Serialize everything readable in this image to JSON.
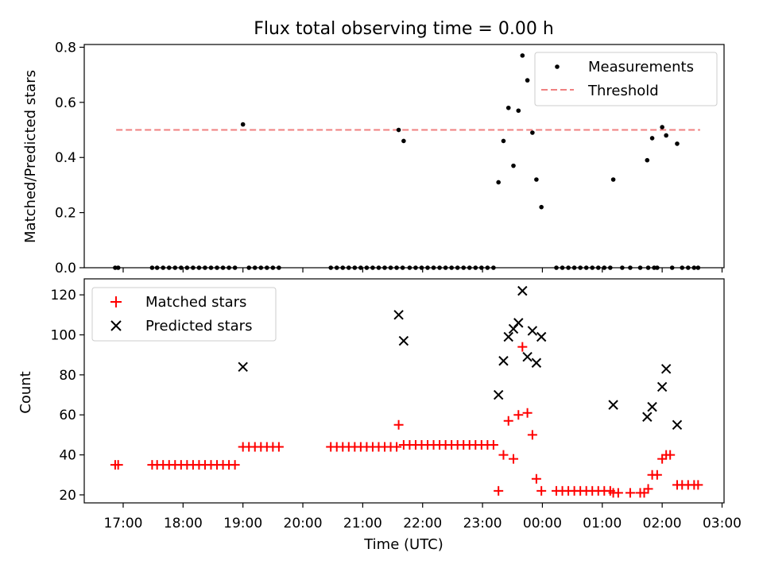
{
  "chart_data": [
    {
      "type": "scatter",
      "title": "Flux total observing time = 0.00 h",
      "xlabel": "",
      "ylabel": "Matched/Predicted stars",
      "xlim": [
        "16:21",
        "03:02"
      ],
      "ylim": [
        0,
        0.81
      ],
      "yticks": [
        "0.0",
        "0.2",
        "0.4",
        "0.6",
        "0.8"
      ],
      "legend": {
        "placement": "upper-right",
        "entries": [
          {
            "label": "Measurements",
            "marker": "dot",
            "color": "#000000"
          },
          {
            "label": "Threshold",
            "marker": "dashed-line",
            "color": "#f08080"
          }
        ]
      },
      "threshold": {
        "value": 0.5,
        "x_range": [
          "16:53",
          "02:38"
        ]
      },
      "series": [
        {
          "name": "Measurements",
          "points": [
            [
              "16:52",
              0
            ],
            [
              "16:55",
              0
            ],
            [
              "17:29",
              0
            ],
            [
              "17:34",
              0
            ],
            [
              "17:40",
              0
            ],
            [
              "17:46",
              0
            ],
            [
              "17:52",
              0
            ],
            [
              "17:58",
              0
            ],
            [
              "18:04",
              0
            ],
            [
              "18:10",
              0
            ],
            [
              "18:16",
              0
            ],
            [
              "18:22",
              0
            ],
            [
              "18:28",
              0
            ],
            [
              "18:34",
              0
            ],
            [
              "18:40",
              0
            ],
            [
              "18:46",
              0
            ],
            [
              "18:52",
              0
            ],
            [
              "19:00",
              0.52
            ],
            [
              "19:06",
              0
            ],
            [
              "19:12",
              0
            ],
            [
              "19:18",
              0
            ],
            [
              "19:24",
              0
            ],
            [
              "19:30",
              0
            ],
            [
              "19:36",
              0
            ],
            [
              "20:28",
              0
            ],
            [
              "20:34",
              0
            ],
            [
              "20:40",
              0
            ],
            [
              "20:46",
              0
            ],
            [
              "20:52",
              0
            ],
            [
              "20:58",
              0
            ],
            [
              "21:04",
              0
            ],
            [
              "21:10",
              0
            ],
            [
              "21:16",
              0
            ],
            [
              "21:22",
              0
            ],
            [
              "21:28",
              0
            ],
            [
              "21:34",
              0
            ],
            [
              "21:40",
              0
            ],
            [
              "21:36",
              0.5
            ],
            [
              "21:41",
              0.46
            ],
            [
              "21:47",
              0
            ],
            [
              "21:53",
              0
            ],
            [
              "21:59",
              0
            ],
            [
              "22:05",
              0
            ],
            [
              "22:11",
              0
            ],
            [
              "22:17",
              0
            ],
            [
              "22:23",
              0
            ],
            [
              "22:29",
              0
            ],
            [
              "22:35",
              0
            ],
            [
              "22:41",
              0
            ],
            [
              "22:47",
              0
            ],
            [
              "22:53",
              0
            ],
            [
              "22:59",
              0
            ],
            [
              "23:05",
              0
            ],
            [
              "23:11",
              0
            ],
            [
              "23:16",
              0.31
            ],
            [
              "23:21",
              0.46
            ],
            [
              "23:26",
              0.58
            ],
            [
              "23:31",
              0.37
            ],
            [
              "23:36",
              0.57
            ],
            [
              "23:40",
              0.77
            ],
            [
              "23:45",
              0.68
            ],
            [
              "23:50",
              0.49
            ],
            [
              "23:54",
              0.32
            ],
            [
              "23:59",
              0.22
            ],
            [
              "00:14",
              0
            ],
            [
              "00:20",
              0
            ],
            [
              "00:26",
              0
            ],
            [
              "00:32",
              0
            ],
            [
              "00:38",
              0
            ],
            [
              "00:44",
              0
            ],
            [
              "00:50",
              0
            ],
            [
              "00:56",
              0
            ],
            [
              "01:02",
              0
            ],
            [
              "01:08",
              0
            ],
            [
              "01:11",
              0.32
            ],
            [
              "01:20",
              0
            ],
            [
              "01:28",
              0
            ],
            [
              "01:38",
              0
            ],
            [
              "01:46",
              0
            ],
            [
              "01:52",
              0
            ],
            [
              "01:45",
              0.39
            ],
            [
              "01:50",
              0.47
            ],
            [
              "01:55",
              0
            ],
            [
              "02:00",
              0.51
            ],
            [
              "02:04",
              0.48
            ],
            [
              "02:10",
              0
            ],
            [
              "02:15",
              0.45
            ],
            [
              "02:20",
              0
            ],
            [
              "02:26",
              0
            ],
            [
              "02:32",
              0
            ],
            [
              "02:36",
              0
            ]
          ]
        },
        {
          "name": "Threshold",
          "points": [
            [
              "16:53",
              0.5
            ],
            [
              "02:38",
              0.5
            ]
          ]
        }
      ]
    },
    {
      "type": "scatter",
      "title": "",
      "xlabel": "Time (UTC)",
      "ylabel": "Count",
      "xlim": [
        "16:21",
        "03:02"
      ],
      "ylim": [
        16,
        128
      ],
      "xticks": [
        "17:00",
        "18:00",
        "19:00",
        "20:00",
        "21:00",
        "22:00",
        "23:00",
        "00:00",
        "01:00",
        "02:00",
        "03:00"
      ],
      "yticks": [
        "20",
        "40",
        "60",
        "80",
        "100",
        "120"
      ],
      "legend": {
        "placement": "upper-left",
        "entries": [
          {
            "label": "Matched stars",
            "marker": "plus",
            "color": "#ff0000"
          },
          {
            "label": "Predicted stars",
            "marker": "x",
            "color": "#000000"
          }
        ]
      },
      "series": [
        {
          "name": "Matched stars",
          "points": [
            [
              "16:52",
              35
            ],
            [
              "16:55",
              35
            ],
            [
              "17:29",
              35
            ],
            [
              "17:34",
              35
            ],
            [
              "17:40",
              35
            ],
            [
              "17:46",
              35
            ],
            [
              "17:52",
              35
            ],
            [
              "17:58",
              35
            ],
            [
              "18:04",
              35
            ],
            [
              "18:10",
              35
            ],
            [
              "18:16",
              35
            ],
            [
              "18:22",
              35
            ],
            [
              "18:28",
              35
            ],
            [
              "18:34",
              35
            ],
            [
              "18:40",
              35
            ],
            [
              "18:46",
              35
            ],
            [
              "18:52",
              35
            ],
            [
              "19:00",
              44
            ],
            [
              "19:06",
              44
            ],
            [
              "19:12",
              44
            ],
            [
              "19:18",
              44
            ],
            [
              "19:24",
              44
            ],
            [
              "19:30",
              44
            ],
            [
              "19:36",
              44
            ],
            [
              "20:28",
              44
            ],
            [
              "20:34",
              44
            ],
            [
              "20:40",
              44
            ],
            [
              "20:46",
              44
            ],
            [
              "20:52",
              44
            ],
            [
              "20:58",
              44
            ],
            [
              "21:04",
              44
            ],
            [
              "21:10",
              44
            ],
            [
              "21:16",
              44
            ],
            [
              "21:22",
              44
            ],
            [
              "21:28",
              44
            ],
            [
              "21:34",
              44
            ],
            [
              "21:36",
              55
            ],
            [
              "21:41",
              45
            ],
            [
              "21:47",
              45
            ],
            [
              "21:53",
              45
            ],
            [
              "21:59",
              45
            ],
            [
              "22:05",
              45
            ],
            [
              "22:11",
              45
            ],
            [
              "22:17",
              45
            ],
            [
              "22:23",
              45
            ],
            [
              "22:29",
              45
            ],
            [
              "22:35",
              45
            ],
            [
              "22:41",
              45
            ],
            [
              "22:47",
              45
            ],
            [
              "22:53",
              45
            ],
            [
              "22:59",
              45
            ],
            [
              "23:05",
              45
            ],
            [
              "23:11",
              45
            ],
            [
              "23:16",
              22
            ],
            [
              "23:21",
              40
            ],
            [
              "23:26",
              57
            ],
            [
              "23:31",
              38
            ],
            [
              "23:36",
              60
            ],
            [
              "23:40",
              94
            ],
            [
              "23:45",
              61
            ],
            [
              "23:50",
              50
            ],
            [
              "23:54",
              28
            ],
            [
              "23:59",
              22
            ],
            [
              "00:14",
              22
            ],
            [
              "00:20",
              22
            ],
            [
              "00:26",
              22
            ],
            [
              "00:32",
              22
            ],
            [
              "00:38",
              22
            ],
            [
              "00:44",
              22
            ],
            [
              "00:50",
              22
            ],
            [
              "00:56",
              22
            ],
            [
              "01:02",
              22
            ],
            [
              "01:08",
              22
            ],
            [
              "01:11",
              21
            ],
            [
              "01:16",
              21
            ],
            [
              "01:28",
              21
            ],
            [
              "01:38",
              21
            ],
            [
              "01:42",
              21
            ],
            [
              "01:46",
              23
            ],
            [
              "01:50",
              30
            ],
            [
              "01:55",
              30
            ],
            [
              "02:00",
              38
            ],
            [
              "02:04",
              40
            ],
            [
              "02:08",
              40
            ],
            [
              "02:15",
              25
            ],
            [
              "02:20",
              25
            ],
            [
              "02:26",
              25
            ],
            [
              "02:32",
              25
            ],
            [
              "02:36",
              25
            ]
          ]
        },
        {
          "name": "Predicted stars",
          "points": [
            [
              "19:00",
              84
            ],
            [
              "21:36",
              110
            ],
            [
              "21:41",
              97
            ],
            [
              "23:16",
              70
            ],
            [
              "23:21",
              87
            ],
            [
              "23:26",
              99
            ],
            [
              "23:31",
              103
            ],
            [
              "23:36",
              106
            ],
            [
              "23:40",
              122
            ],
            [
              "23:45",
              89
            ],
            [
              "23:50",
              102
            ],
            [
              "23:54",
              86
            ],
            [
              "23:59",
              99
            ],
            [
              "01:11",
              65
            ],
            [
              "01:45",
              59
            ],
            [
              "01:50",
              64
            ],
            [
              "02:00",
              74
            ],
            [
              "02:04",
              83
            ],
            [
              "02:15",
              55
            ]
          ]
        }
      ]
    }
  ]
}
